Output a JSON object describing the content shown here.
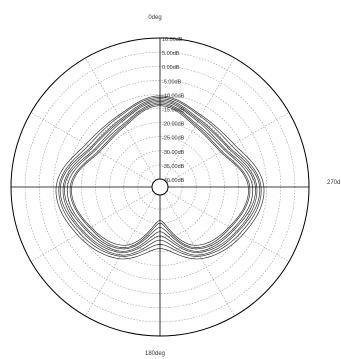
{
  "chart_data": {
    "type": "polar-line",
    "title": "",
    "angle_labels": {
      "top": "0deg",
      "right": "270d",
      "bottom": "180deg"
    },
    "radial_unit": "dB",
    "radial_range": [
      -40,
      10
    ],
    "radial_tick_labels": [
      "10.00dB",
      "5.00dB",
      "0.00dB",
      "-5.00dB",
      "-10.00dB",
      "-15.00dB",
      "-20.00dB",
      "-25.00dB",
      "-30.00dB",
      "-35.00dB",
      "-40.00dB"
    ],
    "radial_ticks": [
      10,
      5,
      0,
      -5,
      -10,
      -15,
      -20,
      -25,
      -30,
      -35,
      -40
    ],
    "angle_spoke_step_deg": 30,
    "grid": true,
    "series_description_points_deg": [
      0,
      30,
      60,
      90,
      120,
      150,
      180,
      210,
      240,
      270,
      300,
      330
    ],
    "series": [
      {
        "angles": [
          0,
          30,
          60,
          90,
          120,
          150,
          180,
          210,
          240,
          270,
          300,
          330
        ],
        "values": [
          -10.5,
          -13.5,
          -12.5,
          -6.0,
          -9.0,
          -13.5,
          -21.0,
          -13.5,
          -9.0,
          -6.0,
          -12.5,
          -13.5
        ]
      },
      {
        "angles": [
          0,
          30,
          60,
          90,
          120,
          150,
          180,
          210,
          240,
          270,
          300,
          330
        ],
        "values": [
          -11.0,
          -14.0,
          -13.5,
          -7.0,
          -10.0,
          -14.5,
          -22.5,
          -14.5,
          -10.0,
          -7.0,
          -13.5,
          -14.0
        ]
      },
      {
        "angles": [
          0,
          30,
          60,
          90,
          120,
          150,
          180,
          210,
          240,
          270,
          300,
          330
        ],
        "values": [
          -11.5,
          -15.0,
          -14.5,
          -7.5,
          -11.0,
          -15.0,
          -24.0,
          -15.0,
          -11.0,
          -7.5,
          -14.5,
          -15.0
        ]
      },
      {
        "angles": [
          0,
          30,
          60,
          90,
          120,
          150,
          180,
          210,
          240,
          270,
          300,
          330
        ],
        "values": [
          -12.0,
          -15.5,
          -15.0,
          -8.5,
          -11.5,
          -16.0,
          -25.5,
          -16.0,
          -11.5,
          -8.5,
          -15.0,
          -15.5
        ]
      },
      {
        "angles": [
          0,
          30,
          60,
          90,
          120,
          150,
          180,
          210,
          240,
          270,
          300,
          330
        ],
        "values": [
          -12.5,
          -16.0,
          -16.0,
          -9.0,
          -12.5,
          -16.5,
          -27.0,
          -16.5,
          -12.5,
          -9.0,
          -16.0,
          -16.0
        ]
      },
      {
        "angles": [
          0,
          30,
          60,
          90,
          120,
          150,
          180,
          210,
          240,
          270,
          300,
          330
        ],
        "values": [
          -13.0,
          -17.0,
          -16.5,
          -10.0,
          -13.0,
          -17.5,
          -28.5,
          -17.5,
          -13.0,
          -10.0,
          -16.5,
          -17.0
        ]
      },
      {
        "angles": [
          0,
          30,
          60,
          90,
          120,
          150,
          180,
          210,
          240,
          270,
          300,
          330
        ],
        "values": [
          -13.5,
          -17.5,
          -17.5,
          -11.0,
          -14.0,
          -18.0,
          -30.0,
          -18.0,
          -14.0,
          -11.0,
          -17.5,
          -17.5
        ]
      },
      {
        "angles": [
          0,
          30,
          60,
          90,
          120,
          150,
          180,
          210,
          240,
          270,
          300,
          330
        ],
        "values": [
          -14.0,
          -18.0,
          -18.0,
          -11.5,
          -14.5,
          -19.0,
          -31.0,
          -19.0,
          -14.5,
          -11.5,
          -18.0,
          -18.0
        ]
      }
    ]
  },
  "colors": {
    "background": "#ffffff",
    "circle_outline": "#000000",
    "grid": "#9a9a9a",
    "series_line": "#111111",
    "text": "#333333"
  }
}
